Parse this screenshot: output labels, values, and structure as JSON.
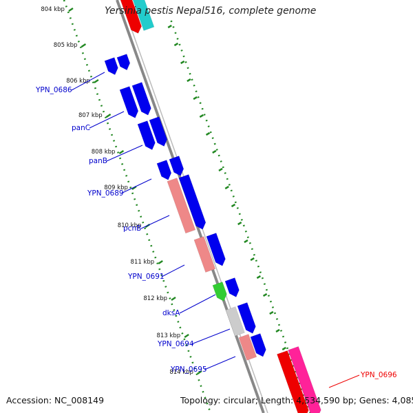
{
  "title": "Yersinia pestis Nepal516, complete genome",
  "footer": {
    "accession": "Accession: NC_008149",
    "topology": "Topology: circular; Length: 4,534,590 bp; Genes: 4,085"
  },
  "ruler": {
    "tick_labels": [
      "804 kbp",
      "805 kbp",
      "806 kbp",
      "807 kbp",
      "808 kbp",
      "809 kbp",
      "810 kbp",
      "811 kbp",
      "812 kbp",
      "813 kbp",
      "814 kbp"
    ]
  },
  "gene_labels": [
    "YPN_0686",
    "panC",
    "panB",
    "YPN_0689",
    "pcnB",
    "YPN_0691",
    "dksA",
    "YPN_0694",
    "YPN_0695",
    "YPN_0696"
  ],
  "colors": {
    "cds": "#0000ee",
    "label_blue": "#0000cc",
    "label_red": "#ee0000",
    "pink": "#ee8888",
    "green": "#33cc33",
    "gray": "#cccccc",
    "red": "#ee0000",
    "magenta": "#ff2299",
    "cyan": "#22cccc",
    "backbone": "#888888",
    "tick": "#228822"
  }
}
